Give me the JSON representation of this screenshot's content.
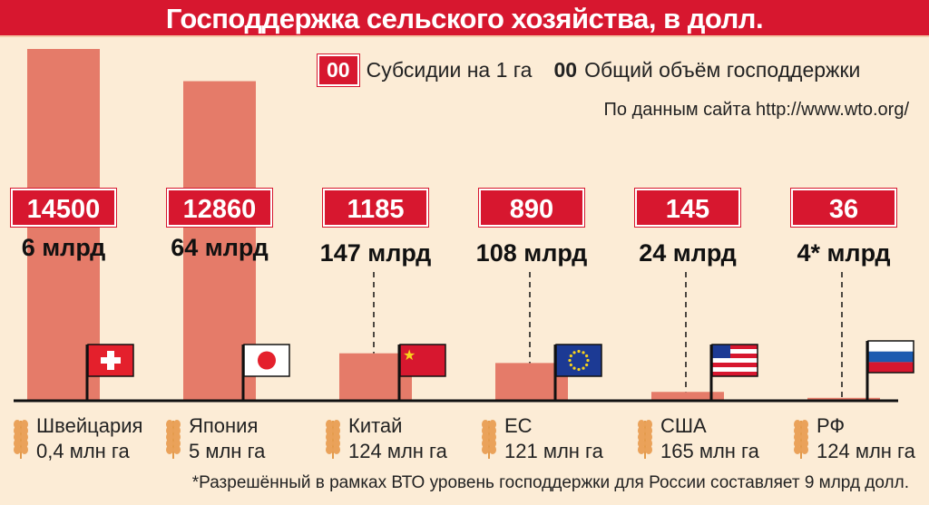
{
  "title": "Господдержка сельского хозяйства, в долл.",
  "legend": {
    "box_sample": "00",
    "box_label": "Субсидии на 1 га",
    "bold_sample": "00",
    "bold_label": "Общий объём господдержки"
  },
  "source": "По данным сайта http://www.wto.org/",
  "footnote": "*Разрешённый в рамках ВТО уровень господдержки для России составляет 9 млрд долл.",
  "colors": {
    "title_bg": "#d7172f",
    "bar": "#e57b69",
    "background": "#fcecd6"
  },
  "chart_data": {
    "type": "bar",
    "title": "Господдержка сельского хозяйства, в долл.",
    "categories": [
      "Швейцария",
      "Япония",
      "Китай",
      "ЕС",
      "США",
      "РФ"
    ],
    "series": [
      {
        "name": "Субсидии на 1 га",
        "values": [
          14500,
          12860,
          1185,
          890,
          145,
          36
        ]
      }
    ],
    "value_labels": [
      "14500",
      "12860",
      "1185",
      "890",
      "145",
      "36"
    ],
    "totals": [
      "6 млрд",
      "64 млрд",
      "147 млрд",
      "108 млрд",
      "24 млрд",
      "4* млрд"
    ],
    "areas": [
      "0,4 млн га",
      "5 млн га",
      "124 млн га",
      "121 млн га",
      "165 млн га",
      "124 млн га"
    ],
    "flags": [
      "switzerland",
      "japan",
      "china",
      "eu",
      "usa",
      "russia"
    ],
    "legend_position": "top-right"
  }
}
